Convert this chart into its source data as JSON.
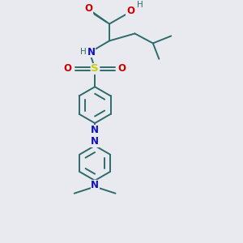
{
  "bg_color": "#e8eaf0",
  "bond_color": "#2d6b6b",
  "N_color": "#1010cc",
  "O_color": "#cc0000",
  "S_color": "#cccc00",
  "H_color": "#2d6b6b",
  "figsize": [
    3.0,
    3.0
  ],
  "dpi": 100,
  "xlim": [
    0,
    10
  ],
  "ylim": [
    0,
    10
  ]
}
